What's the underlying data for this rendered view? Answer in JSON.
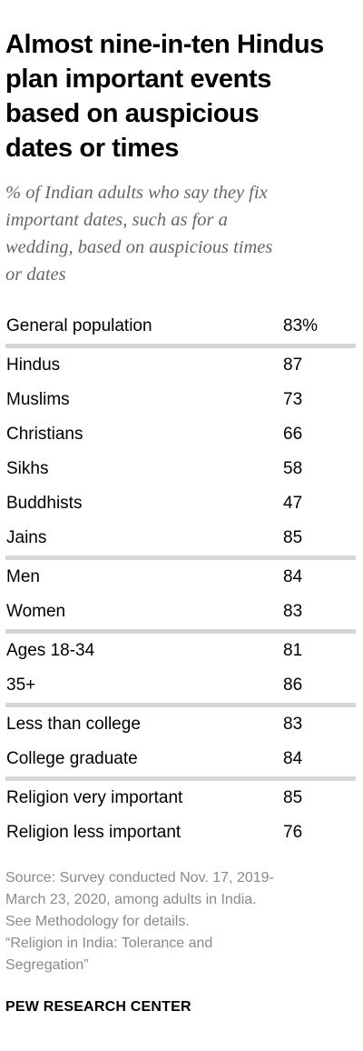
{
  "title": "Almost nine-in-ten Hindus\nplan important events\nbased on auspicious\ndates or times",
  "subtitle": "% of Indian adults who say they fix\nimportant dates, such as for a\nwedding, based on auspicious times\nor dates",
  "chart_data": {
    "type": "table",
    "groups": [
      {
        "rows": [
          {
            "label": "General population",
            "value": "83%"
          }
        ]
      },
      {
        "rows": [
          {
            "label": "Hindus",
            "value": "87"
          },
          {
            "label": "Muslims",
            "value": "73"
          },
          {
            "label": "Christians",
            "value": "66"
          },
          {
            "label": "Sikhs",
            "value": "58"
          },
          {
            "label": "Buddhists",
            "value": "47"
          },
          {
            "label": "Jains",
            "value": "85"
          }
        ]
      },
      {
        "rows": [
          {
            "label": "Men",
            "value": "84"
          },
          {
            "label": "Women",
            "value": "83"
          }
        ]
      },
      {
        "rows": [
          {
            "label": "Ages 18-34",
            "value": "81"
          },
          {
            "label": "35+",
            "value": "86"
          }
        ]
      },
      {
        "rows": [
          {
            "label": "Less than college",
            "value": "83"
          },
          {
            "label": "College graduate",
            "value": "84"
          }
        ]
      },
      {
        "rows": [
          {
            "label": "Religion very important",
            "value": "85"
          },
          {
            "label": "Religion less important",
            "value": "76"
          }
        ]
      }
    ]
  },
  "source": "Source: Survey conducted Nov. 17, 2019-\nMarch 23, 2020, among adults in India.\nSee Methodology for details.\n“Religion in India: Tolerance and\nSegregation”",
  "brand": "PEW RESEARCH CENTER",
  "colors": {
    "separator": "#d6d6d6",
    "subtitle": "#666666",
    "footer": "#8a8a8a"
  }
}
